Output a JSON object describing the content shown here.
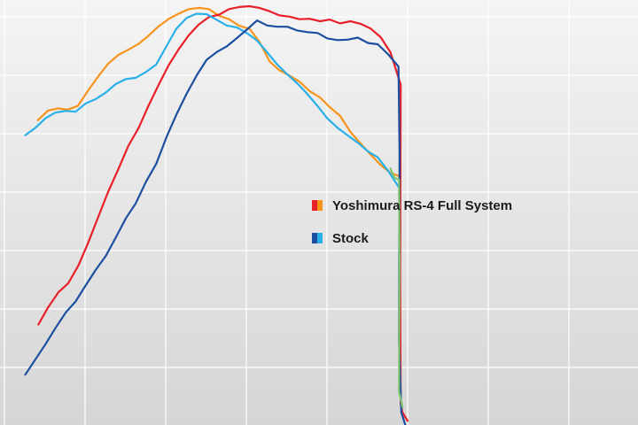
{
  "chart_data": {
    "type": "line",
    "title": "",
    "xlabel": "",
    "ylabel": "",
    "grid": true,
    "xlim": [
      0,
      100
    ],
    "ylim": [
      0,
      100
    ],
    "legend": {
      "placement": "center",
      "entries": [
        {
          "label": "Yoshimura RS-4 Full System",
          "colors": [
            "#e8202a",
            "#f7941d"
          ]
        },
        {
          "label": "Stock",
          "colors": [
            "#1d4fa0",
            "#2ab0e8"
          ]
        }
      ]
    },
    "series": [
      {
        "name": "Yoshimura RS-4 Full System",
        "group": "Yoshimura RS-4 Full System",
        "color": "#f7941d",
        "points": [
          [
            3.2,
            72.8
          ],
          [
            5.0,
            75.1
          ],
          [
            6.7,
            75.6
          ],
          [
            8.4,
            75.3
          ],
          [
            10.2,
            76.2
          ],
          [
            12.0,
            79.9
          ],
          [
            13.8,
            83.3
          ],
          [
            15.5,
            86.3
          ],
          [
            17.3,
            88.4
          ],
          [
            19.0,
            89.6
          ],
          [
            20.8,
            91.0
          ],
          [
            22.5,
            92.9
          ],
          [
            24.3,
            95.2
          ],
          [
            26.1,
            97.0
          ],
          [
            27.8,
            98.2
          ],
          [
            29.6,
            99.3
          ],
          [
            31.4,
            99.6
          ],
          [
            33.1,
            99.3
          ],
          [
            34.9,
            97.7
          ],
          [
            36.6,
            96.9
          ],
          [
            38.4,
            95.3
          ],
          [
            40.2,
            94.6
          ],
          [
            41.9,
            91.5
          ],
          [
            43.7,
            86.8
          ],
          [
            45.4,
            84.7
          ],
          [
            47.2,
            83.4
          ],
          [
            49.0,
            81.9
          ],
          [
            50.7,
            79.7
          ],
          [
            52.5,
            78.2
          ],
          [
            54.2,
            75.9
          ],
          [
            56.0,
            73.8
          ],
          [
            57.8,
            70.0
          ],
          [
            59.6,
            67.2
          ],
          [
            61.3,
            64.6
          ],
          [
            63.1,
            62.1
          ],
          [
            64.8,
            60.2
          ],
          [
            66.6,
            59.3
          ]
        ]
      },
      {
        "name": "Yoshimura RS-4 Full System",
        "group": "Yoshimura RS-4 Full System",
        "color": "#e8202a",
        "points": [
          [
            3.3,
            24.0
          ],
          [
            5.0,
            28.1
          ],
          [
            6.8,
            31.7
          ],
          [
            8.5,
            33.8
          ],
          [
            10.3,
            38.1
          ],
          [
            12.0,
            43.5
          ],
          [
            13.8,
            49.8
          ],
          [
            15.5,
            55.7
          ],
          [
            17.3,
            61.2
          ],
          [
            19.0,
            66.6
          ],
          [
            20.8,
            70.9
          ],
          [
            22.5,
            76.1
          ],
          [
            24.3,
            81.2
          ],
          [
            26.0,
            85.8
          ],
          [
            27.8,
            89.7
          ],
          [
            29.6,
            93.1
          ],
          [
            31.3,
            95.6
          ],
          [
            33.1,
            97.4
          ],
          [
            34.9,
            98.0
          ],
          [
            36.6,
            99.3
          ],
          [
            38.4,
            99.8
          ],
          [
            40.2,
            100.0
          ],
          [
            41.9,
            99.6
          ],
          [
            43.7,
            98.8
          ],
          [
            45.4,
            97.8
          ],
          [
            47.2,
            97.5
          ],
          [
            48.9,
            96.9
          ],
          [
            50.7,
            97.0
          ],
          [
            52.5,
            96.4
          ],
          [
            54.2,
            96.8
          ],
          [
            56.0,
            95.9
          ],
          [
            57.8,
            96.4
          ],
          [
            59.6,
            95.8
          ],
          [
            61.3,
            94.7
          ],
          [
            63.1,
            92.6
          ],
          [
            64.8,
            89.0
          ],
          [
            66.6,
            81.3
          ],
          [
            66.5,
            35.0
          ],
          [
            66.6,
            5.0
          ],
          [
            66.9,
            3.0
          ],
          [
            67.8,
            1.0
          ]
        ]
      },
      {
        "name": "Stock",
        "group": "Stock",
        "color": "#2ab0e8",
        "points": [
          [
            1.0,
            69.2
          ],
          [
            2.8,
            71.0
          ],
          [
            4.6,
            73.3
          ],
          [
            6.3,
            74.6
          ],
          [
            8.1,
            75.0
          ],
          [
            9.8,
            74.8
          ],
          [
            11.6,
            76.8
          ],
          [
            13.3,
            77.8
          ],
          [
            15.1,
            79.4
          ],
          [
            16.8,
            81.4
          ],
          [
            18.6,
            82.6
          ],
          [
            20.3,
            82.9
          ],
          [
            22.1,
            84.3
          ],
          [
            23.9,
            86.1
          ],
          [
            25.7,
            90.5
          ],
          [
            27.4,
            94.6
          ],
          [
            29.2,
            97.2
          ],
          [
            30.9,
            98.2
          ],
          [
            32.7,
            98.1
          ],
          [
            34.5,
            96.7
          ],
          [
            36.2,
            95.4
          ],
          [
            38.0,
            94.9
          ],
          [
            39.7,
            93.6
          ],
          [
            41.5,
            91.8
          ],
          [
            43.2,
            89.1
          ],
          [
            45.0,
            86.1
          ],
          [
            46.8,
            83.7
          ],
          [
            48.5,
            81.6
          ],
          [
            50.3,
            79.0
          ],
          [
            52.1,
            76.1
          ],
          [
            53.8,
            73.2
          ],
          [
            55.6,
            70.9
          ],
          [
            57.3,
            69.2
          ],
          [
            59.1,
            67.4
          ],
          [
            60.9,
            65.3
          ],
          [
            62.6,
            63.9
          ],
          [
            64.4,
            60.7
          ],
          [
            66.2,
            56.9
          ]
        ]
      },
      {
        "name": "Stock",
        "group": "Stock",
        "color": "#1d4fa0",
        "points": [
          [
            1.0,
            12.0
          ],
          [
            2.8,
            15.7
          ],
          [
            4.6,
            19.4
          ],
          [
            6.3,
            23.2
          ],
          [
            8.1,
            26.9
          ],
          [
            9.8,
            29.5
          ],
          [
            11.6,
            33.4
          ],
          [
            13.3,
            37.0
          ],
          [
            15.1,
            40.4
          ],
          [
            16.8,
            44.7
          ],
          [
            18.6,
            49.4
          ],
          [
            20.3,
            52.9
          ],
          [
            22.1,
            58.1
          ],
          [
            23.9,
            62.4
          ],
          [
            25.7,
            68.8
          ],
          [
            27.5,
            74.4
          ],
          [
            29.2,
            79.1
          ],
          [
            31.0,
            83.6
          ],
          [
            32.7,
            87.2
          ],
          [
            34.5,
            89.1
          ],
          [
            36.2,
            90.4
          ],
          [
            38.0,
            92.4
          ],
          [
            39.8,
            94.5
          ],
          [
            41.5,
            96.6
          ],
          [
            43.3,
            95.4
          ],
          [
            45.0,
            95.1
          ],
          [
            46.8,
            95.1
          ],
          [
            48.5,
            94.2
          ],
          [
            50.3,
            93.8
          ],
          [
            52.1,
            93.6
          ],
          [
            53.8,
            92.3
          ],
          [
            55.6,
            91.9
          ],
          [
            57.3,
            92.0
          ],
          [
            59.1,
            92.5
          ],
          [
            60.9,
            91.2
          ],
          [
            62.6,
            90.9
          ],
          [
            64.4,
            88.5
          ],
          [
            66.2,
            85.6
          ],
          [
            66.4,
            65.0
          ],
          [
            66.3,
            20.0
          ],
          [
            66.7,
            3.0
          ],
          [
            67.4,
            0.0
          ]
        ]
      },
      {
        "name": "",
        "group": "Yoshimura RS-4 Full System",
        "color": "#7cc36d",
        "points": [
          [
            64.8,
            61.3
          ],
          [
            65.5,
            59.0
          ],
          [
            66.3,
            58.6
          ],
          [
            66.4,
            40.0
          ],
          [
            66.3,
            8.0
          ],
          [
            66.9,
            4.3
          ]
        ]
      }
    ]
  }
}
